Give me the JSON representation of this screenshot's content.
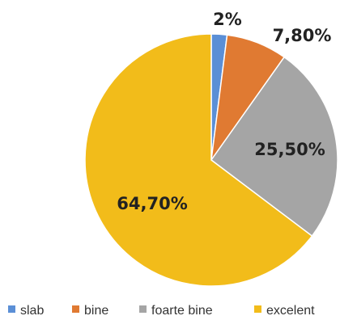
{
  "chart_data": {
    "type": "pie",
    "categories": [
      "slab",
      "bine",
      "foarte bine",
      "excelent"
    ],
    "values": [
      2,
      7.8,
      25.5,
      64.7
    ],
    "labels": [
      "2%",
      "7,80%",
      "25,50%",
      "64,70%"
    ],
    "colors": [
      "#5B8FD6",
      "#E07A32",
      "#A5A5A5",
      "#F2BC1A"
    ],
    "legend_position": "bottom",
    "start_angle_deg": 0,
    "direction": "clockwise"
  }
}
